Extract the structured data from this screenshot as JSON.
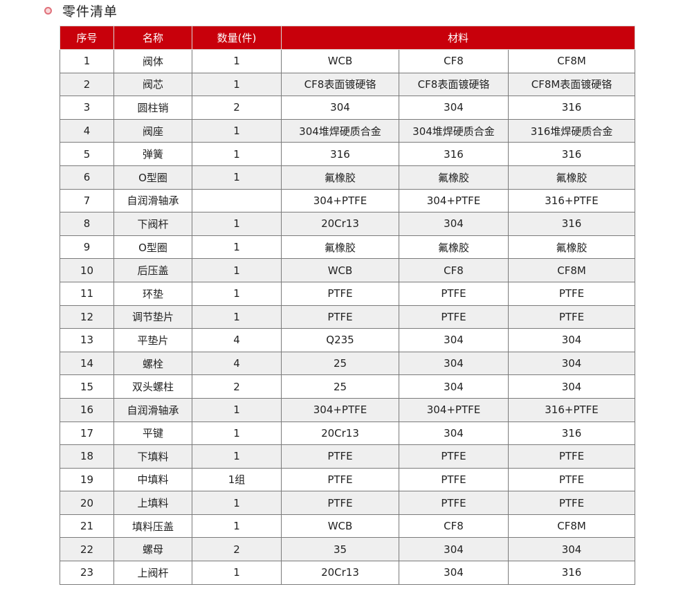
{
  "title": "零件清单",
  "colors": {
    "header_bg": "#c8000b",
    "alt_row_bg": "#efefef",
    "bullet": "#e0707a"
  },
  "headers": [
    "序号",
    "名称",
    "数量(件)",
    "材料"
  ],
  "rows": [
    [
      "1",
      "阀体",
      "1",
      "WCB",
      "CF8",
      "CF8M"
    ],
    [
      "2",
      "阀芯",
      "1",
      "CF8表面镀硬铬",
      "CF8表面镀硬铬",
      "CF8M表面镀硬铬"
    ],
    [
      "3",
      "圆柱销",
      "2",
      "304",
      "304",
      "316"
    ],
    [
      "4",
      "阀座",
      "1",
      "304堆焊硬质合金",
      "304堆焊硬质合金",
      "316堆焊硬质合金"
    ],
    [
      "5",
      "弹簧",
      "1",
      "316",
      "316",
      "316"
    ],
    [
      "6",
      "O型圈",
      "1",
      "氟橡胶",
      "氟橡胶",
      "氟橡胶"
    ],
    [
      "7",
      "自润滑轴承",
      "",
      "304+PTFE",
      "304+PTFE",
      "316+PTFE"
    ],
    [
      "8",
      "下阀杆",
      "1",
      "20Cr13",
      "304",
      "316"
    ],
    [
      "9",
      "O型圈",
      "1",
      "氟橡胶",
      "氟橡胶",
      "氟橡胶"
    ],
    [
      "10",
      "后压盖",
      "1",
      "WCB",
      "CF8",
      "CF8M"
    ],
    [
      "11",
      "环垫",
      "1",
      "PTFE",
      "PTFE",
      "PTFE"
    ],
    [
      "12",
      "调节垫片",
      "1",
      "PTFE",
      "PTFE",
      "PTFE"
    ],
    [
      "13",
      "平垫片",
      "4",
      "Q235",
      "304",
      "304"
    ],
    [
      "14",
      "螺栓",
      "4",
      "25",
      "304",
      "304"
    ],
    [
      "15",
      "双头螺柱",
      "2",
      "25",
      "304",
      "304"
    ],
    [
      "16",
      "自润滑轴承",
      "1",
      "304+PTFE",
      "304+PTFE",
      "316+PTFE"
    ],
    [
      "17",
      "平键",
      "1",
      "20Cr13",
      "304",
      "316"
    ],
    [
      "18",
      "下填料",
      "1",
      "PTFE",
      "PTFE",
      "PTFE"
    ],
    [
      "19",
      "中填料",
      "1组",
      "PTFE",
      "PTFE",
      "PTFE"
    ],
    [
      "20",
      "上填料",
      "1",
      "PTFE",
      "PTFE",
      "PTFE"
    ],
    [
      "21",
      "填料压盖",
      "1",
      "WCB",
      "CF8",
      "CF8M"
    ],
    [
      "22",
      "螺母",
      "2",
      "35",
      "304",
      "304"
    ],
    [
      "23",
      "上阀杆",
      "1",
      "20Cr13",
      "304",
      "316"
    ]
  ]
}
